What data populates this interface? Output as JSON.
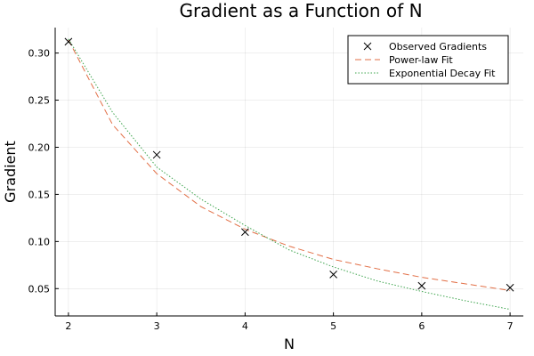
{
  "chart_data": {
    "type": "line",
    "title": "Gradient as a Function of N",
    "xlabel": "N",
    "ylabel": "Gradient",
    "xlim": [
      1.85,
      7.15
    ],
    "ylim": [
      0.021,
      0.327
    ],
    "xticks": [
      2,
      3,
      4,
      5,
      6,
      7
    ],
    "xtick_labels": [
      "2",
      "3",
      "4",
      "5",
      "6",
      "7"
    ],
    "yticks": [
      0.05,
      0.1,
      0.15,
      0.2,
      0.25,
      0.3
    ],
    "ytick_labels": [
      "0.05",
      "0.10",
      "0.15",
      "0.20",
      "0.25",
      "0.30"
    ],
    "grid": true,
    "legend_position": "top-right",
    "series": [
      {
        "name": "Observed Gradients",
        "kind": "scatter",
        "marker": "x",
        "color": "#000000",
        "x": [
          2,
          3,
          4,
          5,
          6,
          7
        ],
        "y": [
          0.312,
          0.192,
          0.11,
          0.065,
          0.053,
          0.051
        ]
      },
      {
        "name": "Power-law Fit",
        "kind": "line",
        "dash": "dashed",
        "color": "#e26f46",
        "x": [
          2.0,
          2.5,
          3.0,
          3.5,
          4.0,
          4.5,
          5.0,
          5.5,
          6.0,
          6.5,
          7.0
        ],
        "y": [
          0.314,
          0.224,
          0.172,
          0.137,
          0.113,
          0.095,
          0.081,
          0.071,
          0.062,
          0.055,
          0.048
        ]
      },
      {
        "name": "Exponential Decay Fit",
        "kind": "line",
        "dash": "dotted",
        "color": "#3da44d",
        "x": [
          2.0,
          2.5,
          3.0,
          3.5,
          4.0,
          4.5,
          5.0,
          5.5,
          6.0,
          6.5,
          7.0
        ],
        "y": [
          0.315,
          0.237,
          0.179,
          0.145,
          0.117,
          0.091,
          0.073,
          0.058,
          0.047,
          0.037,
          0.028
        ]
      }
    ]
  }
}
